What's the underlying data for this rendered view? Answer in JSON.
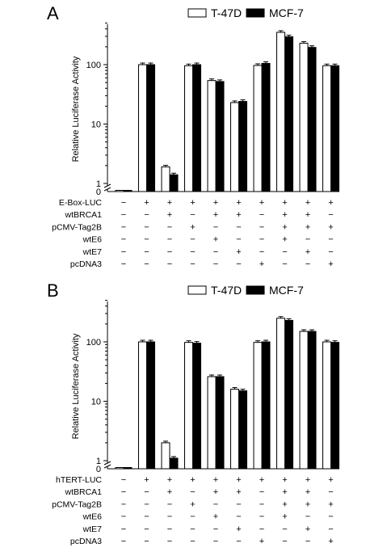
{
  "figure": {
    "panels": [
      {
        "letter": "A",
        "reporter": "E-Box-LUC"
      },
      {
        "letter": "B",
        "reporter": "hTERT-LUC"
      }
    ]
  },
  "chart_data": [
    {
      "type": "bar",
      "panel": "A",
      "ylabel": "Relative Luciferase Activity",
      "yscale": "log",
      "ylim": [
        1,
        500
      ],
      "yticks": [
        "1",
        "10",
        "100"
      ],
      "y_zero_label": "0",
      "axis_break": true,
      "legend": {
        "placement": "top-right",
        "entries": [
          "T-47D",
          "MCF-7"
        ]
      },
      "series": [
        {
          "name": "T-47D",
          "color": "#ffffff",
          "values": [
            0,
            100,
            1.9,
            96,
            54,
            23,
            97,
            350,
            230,
            96
          ]
        },
        {
          "name": "MCF-7",
          "color": "#000000",
          "values": [
            0,
            100,
            1.4,
            100,
            52,
            24,
            105,
            295,
            195,
            96
          ]
        }
      ],
      "condition_table": {
        "row_labels": [
          "E-Box-LUC",
          "wtBRCA1",
          "pCMV-Tag2B",
          "wtE6",
          "wtE7",
          "pcDNA3"
        ],
        "rows": [
          [
            "−",
            "+",
            "+",
            "+",
            "+",
            "+",
            "+",
            "+",
            "+",
            "+"
          ],
          [
            "−",
            "−",
            "+",
            "−",
            "+",
            "+",
            "−",
            "+",
            "+",
            "−"
          ],
          [
            "−",
            "−",
            "−",
            "+",
            "−",
            "−",
            "−",
            "+",
            "+",
            "+"
          ],
          [
            "−",
            "−",
            "−",
            "−",
            "+",
            "−",
            "−",
            "+",
            "−",
            "−"
          ],
          [
            "−",
            "−",
            "−",
            "−",
            "−",
            "+",
            "−",
            "−",
            "+",
            "−"
          ],
          [
            "−",
            "−",
            "−",
            "−",
            "−",
            "−",
            "+",
            "−",
            "−",
            "+"
          ]
        ]
      }
    },
    {
      "type": "bar",
      "panel": "B",
      "ylabel": "Relative Luciferase Activity",
      "yscale": "log",
      "ylim": [
        1,
        500
      ],
      "yticks": [
        "1",
        "10",
        "100"
      ],
      "y_zero_label": "0",
      "axis_break": true,
      "legend": {
        "placement": "top-right",
        "entries": [
          "T-47D",
          "MCF-7"
        ]
      },
      "series": [
        {
          "name": "T-47D",
          "color": "#ffffff",
          "values": [
            0,
            100,
            2.0,
            98,
            26,
            16,
            98,
            250,
            150,
            100
          ]
        },
        {
          "name": "MCF-7",
          "color": "#000000",
          "values": [
            0,
            100,
            1.1,
            95,
            26,
            15,
            100,
            230,
            150,
            98
          ]
        }
      ],
      "condition_table": {
        "row_labels": [
          "hTERT-LUC",
          "wtBRCA1",
          "pCMV-Tag2B",
          "wtE6",
          "wtE7",
          "pcDNA3"
        ],
        "rows": [
          [
            "−",
            "+",
            "+",
            "+",
            "+",
            "+",
            "+",
            "+",
            "+",
            "+"
          ],
          [
            "−",
            "−",
            "+",
            "−",
            "+",
            "+",
            "−",
            "+",
            "+",
            "−"
          ],
          [
            "−",
            "−",
            "−",
            "+",
            "−",
            "−",
            "−",
            "+",
            "+",
            "+"
          ],
          [
            "−",
            "−",
            "−",
            "−",
            "+",
            "−",
            "−",
            "+",
            "−",
            "−"
          ],
          [
            "−",
            "−",
            "−",
            "−",
            "−",
            "+",
            "−",
            "−",
            "+",
            "−"
          ],
          [
            "−",
            "−",
            "−",
            "−",
            "−",
            "−",
            "+",
            "−",
            "−",
            "+"
          ]
        ]
      }
    }
  ]
}
